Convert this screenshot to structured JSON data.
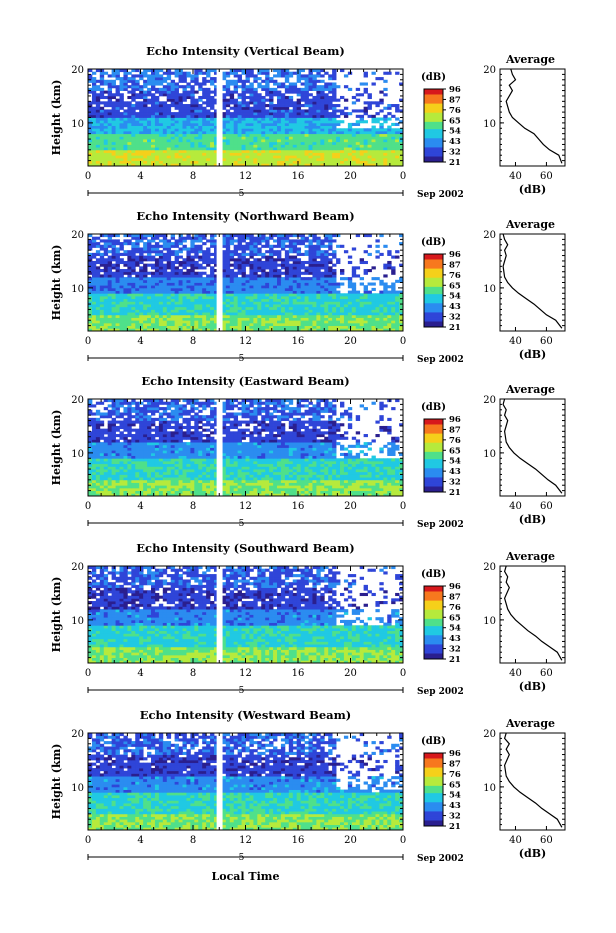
{
  "figure": {
    "xlabel_bottom": "Local Time",
    "date_label": "Sep 2002",
    "day_marker": "5",
    "ylabel": "Height (km)",
    "cbar_title": "(dB)",
    "avg_title": "Average",
    "avg_xlabel": "(dB)"
  },
  "colorbar": {
    "ticks": [
      "96",
      "87",
      "76",
      "65",
      "54",
      "43",
      "32",
      "21"
    ],
    "colors": [
      "#d7191c",
      "#f7781e",
      "#f5d01a",
      "#b6ea3c",
      "#4fe08a",
      "#20c9e3",
      "#2b8cf0",
      "#2f45d8",
      "#2a1f8f"
    ]
  },
  "chart_data": [
    {
      "type": "heatmap",
      "title": "Echo Intensity (Vertical Beam)",
      "x_ticks": [
        "0",
        "4",
        "8",
        "12",
        "16",
        "20",
        "0"
      ],
      "x_range_hours": [
        0,
        24
      ],
      "y_ticks": [
        "20",
        "10"
      ],
      "y_range_km": [
        2,
        20
      ],
      "gap_hours": [
        9.8,
        10.1
      ],
      "layers": [
        {
          "from_km": 2,
          "to_km": 5,
          "dB": 70
        },
        {
          "from_km": 5,
          "to_km": 8,
          "dB": 58
        },
        {
          "from_km": 8,
          "to_km": 11,
          "dB": 45
        },
        {
          "from_km": 11,
          "to_km": 16,
          "dB": 30
        },
        {
          "from_km": 16,
          "to_km": 20,
          "dB": 36
        }
      ],
      "average_profile": {
        "x_ticks": [
          "40",
          "60"
        ],
        "x_range_dB": [
          30,
          72
        ],
        "y_ticks": [
          "20",
          "10"
        ],
        "points_dB_km": [
          [
            70,
            2.5
          ],
          [
            68,
            4
          ],
          [
            62,
            5
          ],
          [
            58,
            6
          ],
          [
            55,
            7
          ],
          [
            52,
            8
          ],
          [
            46,
            9
          ],
          [
            42,
            10
          ],
          [
            38,
            11
          ],
          [
            36,
            12
          ],
          [
            34,
            14
          ],
          [
            38,
            16
          ],
          [
            36,
            17
          ],
          [
            40,
            18
          ],
          [
            38,
            19
          ],
          [
            37,
            20
          ]
        ]
      }
    },
    {
      "type": "heatmap",
      "title": "Echo Intensity (Northward Beam)",
      "x_ticks": [
        "0",
        "4",
        "8",
        "12",
        "16",
        "20",
        "0"
      ],
      "x_range_hours": [
        0,
        24
      ],
      "y_ticks": [
        "20",
        "10"
      ],
      "y_range_km": [
        2,
        20
      ],
      "gap_hours": [
        9.8,
        10.1
      ],
      "layers": [
        {
          "from_km": 2,
          "to_km": 5,
          "dB": 62
        },
        {
          "from_km": 5,
          "to_km": 9,
          "dB": 52
        },
        {
          "from_km": 9,
          "to_km": 12,
          "dB": 38
        },
        {
          "from_km": 12,
          "to_km": 16,
          "dB": 28
        },
        {
          "from_km": 16,
          "to_km": 20,
          "dB": 33
        }
      ],
      "average_profile": {
        "x_ticks": [
          "40",
          "60"
        ],
        "x_range_dB": [
          30,
          72
        ],
        "y_ticks": [
          "20",
          "10"
        ],
        "points_dB_km": [
          [
            70,
            2.5
          ],
          [
            66,
            4
          ],
          [
            60,
            5
          ],
          [
            56,
            6
          ],
          [
            52,
            7
          ],
          [
            47,
            8
          ],
          [
            42,
            9
          ],
          [
            38,
            10
          ],
          [
            35,
            11
          ],
          [
            33,
            12
          ],
          [
            32,
            14
          ],
          [
            34,
            16
          ],
          [
            33,
            17
          ],
          [
            35,
            18
          ],
          [
            33,
            19
          ],
          [
            32,
            20
          ]
        ]
      }
    },
    {
      "type": "heatmap",
      "title": "Echo Intensity (Eastward Beam)",
      "x_ticks": [
        "0",
        "4",
        "8",
        "12",
        "16",
        "20",
        "0"
      ],
      "x_range_hours": [
        0,
        24
      ],
      "y_ticks": [
        "20",
        "10"
      ],
      "y_range_km": [
        2,
        20
      ],
      "gap_hours": [
        9.8,
        10.1
      ],
      "layers": [
        {
          "from_km": 2,
          "to_km": 5,
          "dB": 64
        },
        {
          "from_km": 5,
          "to_km": 9,
          "dB": 53
        },
        {
          "from_km": 9,
          "to_km": 12,
          "dB": 40
        },
        {
          "from_km": 12,
          "to_km": 16,
          "dB": 29
        },
        {
          "from_km": 16,
          "to_km": 20,
          "dB": 34
        }
      ],
      "average_profile": {
        "x_ticks": [
          "40",
          "60"
        ],
        "x_range_dB": [
          30,
          72
        ],
        "y_ticks": [
          "20",
          "10"
        ],
        "points_dB_km": [
          [
            70,
            2.5
          ],
          [
            66,
            4
          ],
          [
            61,
            5
          ],
          [
            57,
            6
          ],
          [
            53,
            7
          ],
          [
            48,
            8
          ],
          [
            43,
            9
          ],
          [
            39,
            10
          ],
          [
            36,
            11
          ],
          [
            34,
            12
          ],
          [
            33,
            14
          ],
          [
            35,
            16
          ],
          [
            33,
            17
          ],
          [
            34,
            18
          ],
          [
            32,
            19
          ],
          [
            33,
            20
          ]
        ]
      }
    },
    {
      "type": "heatmap",
      "title": "Echo Intensity (Southward Beam)",
      "x_ticks": [
        "0",
        "4",
        "8",
        "12",
        "16",
        "20",
        "0"
      ],
      "x_range_hours": [
        0,
        24
      ],
      "y_ticks": [
        "20",
        "10"
      ],
      "y_range_km": [
        2,
        20
      ],
      "gap_hours": [
        9.8,
        10.1
      ],
      "layers": [
        {
          "from_km": 2,
          "to_km": 5,
          "dB": 63
        },
        {
          "from_km": 5,
          "to_km": 9,
          "dB": 52
        },
        {
          "from_km": 9,
          "to_km": 12,
          "dB": 39
        },
        {
          "from_km": 12,
          "to_km": 16,
          "dB": 28
        },
        {
          "from_km": 16,
          "to_km": 20,
          "dB": 33
        }
      ],
      "average_profile": {
        "x_ticks": [
          "40",
          "60"
        ],
        "x_range_dB": [
          30,
          72
        ],
        "y_ticks": [
          "20",
          "10"
        ],
        "points_dB_km": [
          [
            70,
            2.5
          ],
          [
            67,
            4
          ],
          [
            62,
            5
          ],
          [
            57,
            6
          ],
          [
            53,
            7
          ],
          [
            48,
            8
          ],
          [
            44,
            9
          ],
          [
            40,
            10
          ],
          [
            37,
            11
          ],
          [
            35,
            12
          ],
          [
            33,
            14
          ],
          [
            36,
            16
          ],
          [
            34,
            17
          ],
          [
            35,
            18
          ],
          [
            33,
            19
          ],
          [
            34,
            20
          ]
        ]
      }
    },
    {
      "type": "heatmap",
      "title": "Echo Intensity (Westward Beam)",
      "x_ticks": [
        "0",
        "4",
        "8",
        "12",
        "16",
        "20",
        "0"
      ],
      "x_range_hours": [
        0,
        24
      ],
      "y_ticks": [
        "20",
        "10"
      ],
      "y_range_km": [
        2,
        20
      ],
      "gap_hours": [
        9.8,
        10.1
      ],
      "layers": [
        {
          "from_km": 2,
          "to_km": 5,
          "dB": 63
        },
        {
          "from_km": 5,
          "to_km": 9,
          "dB": 53
        },
        {
          "from_km": 9,
          "to_km": 12,
          "dB": 40
        },
        {
          "from_km": 12,
          "to_km": 16,
          "dB": 28
        },
        {
          "from_km": 16,
          "to_km": 20,
          "dB": 34
        }
      ],
      "average_profile": {
        "x_ticks": [
          "40",
          "60"
        ],
        "x_range_dB": [
          30,
          72
        ],
        "y_ticks": [
          "20",
          "10"
        ],
        "points_dB_km": [
          [
            70,
            2.5
          ],
          [
            67,
            4
          ],
          [
            62,
            5
          ],
          [
            57,
            6
          ],
          [
            53,
            7
          ],
          [
            48,
            8
          ],
          [
            43,
            9
          ],
          [
            39,
            10
          ],
          [
            36,
            11
          ],
          [
            34,
            12
          ],
          [
            33,
            14
          ],
          [
            36,
            16
          ],
          [
            34,
            17
          ],
          [
            36,
            18
          ],
          [
            33,
            19
          ],
          [
            34,
            20
          ]
        ]
      }
    }
  ]
}
